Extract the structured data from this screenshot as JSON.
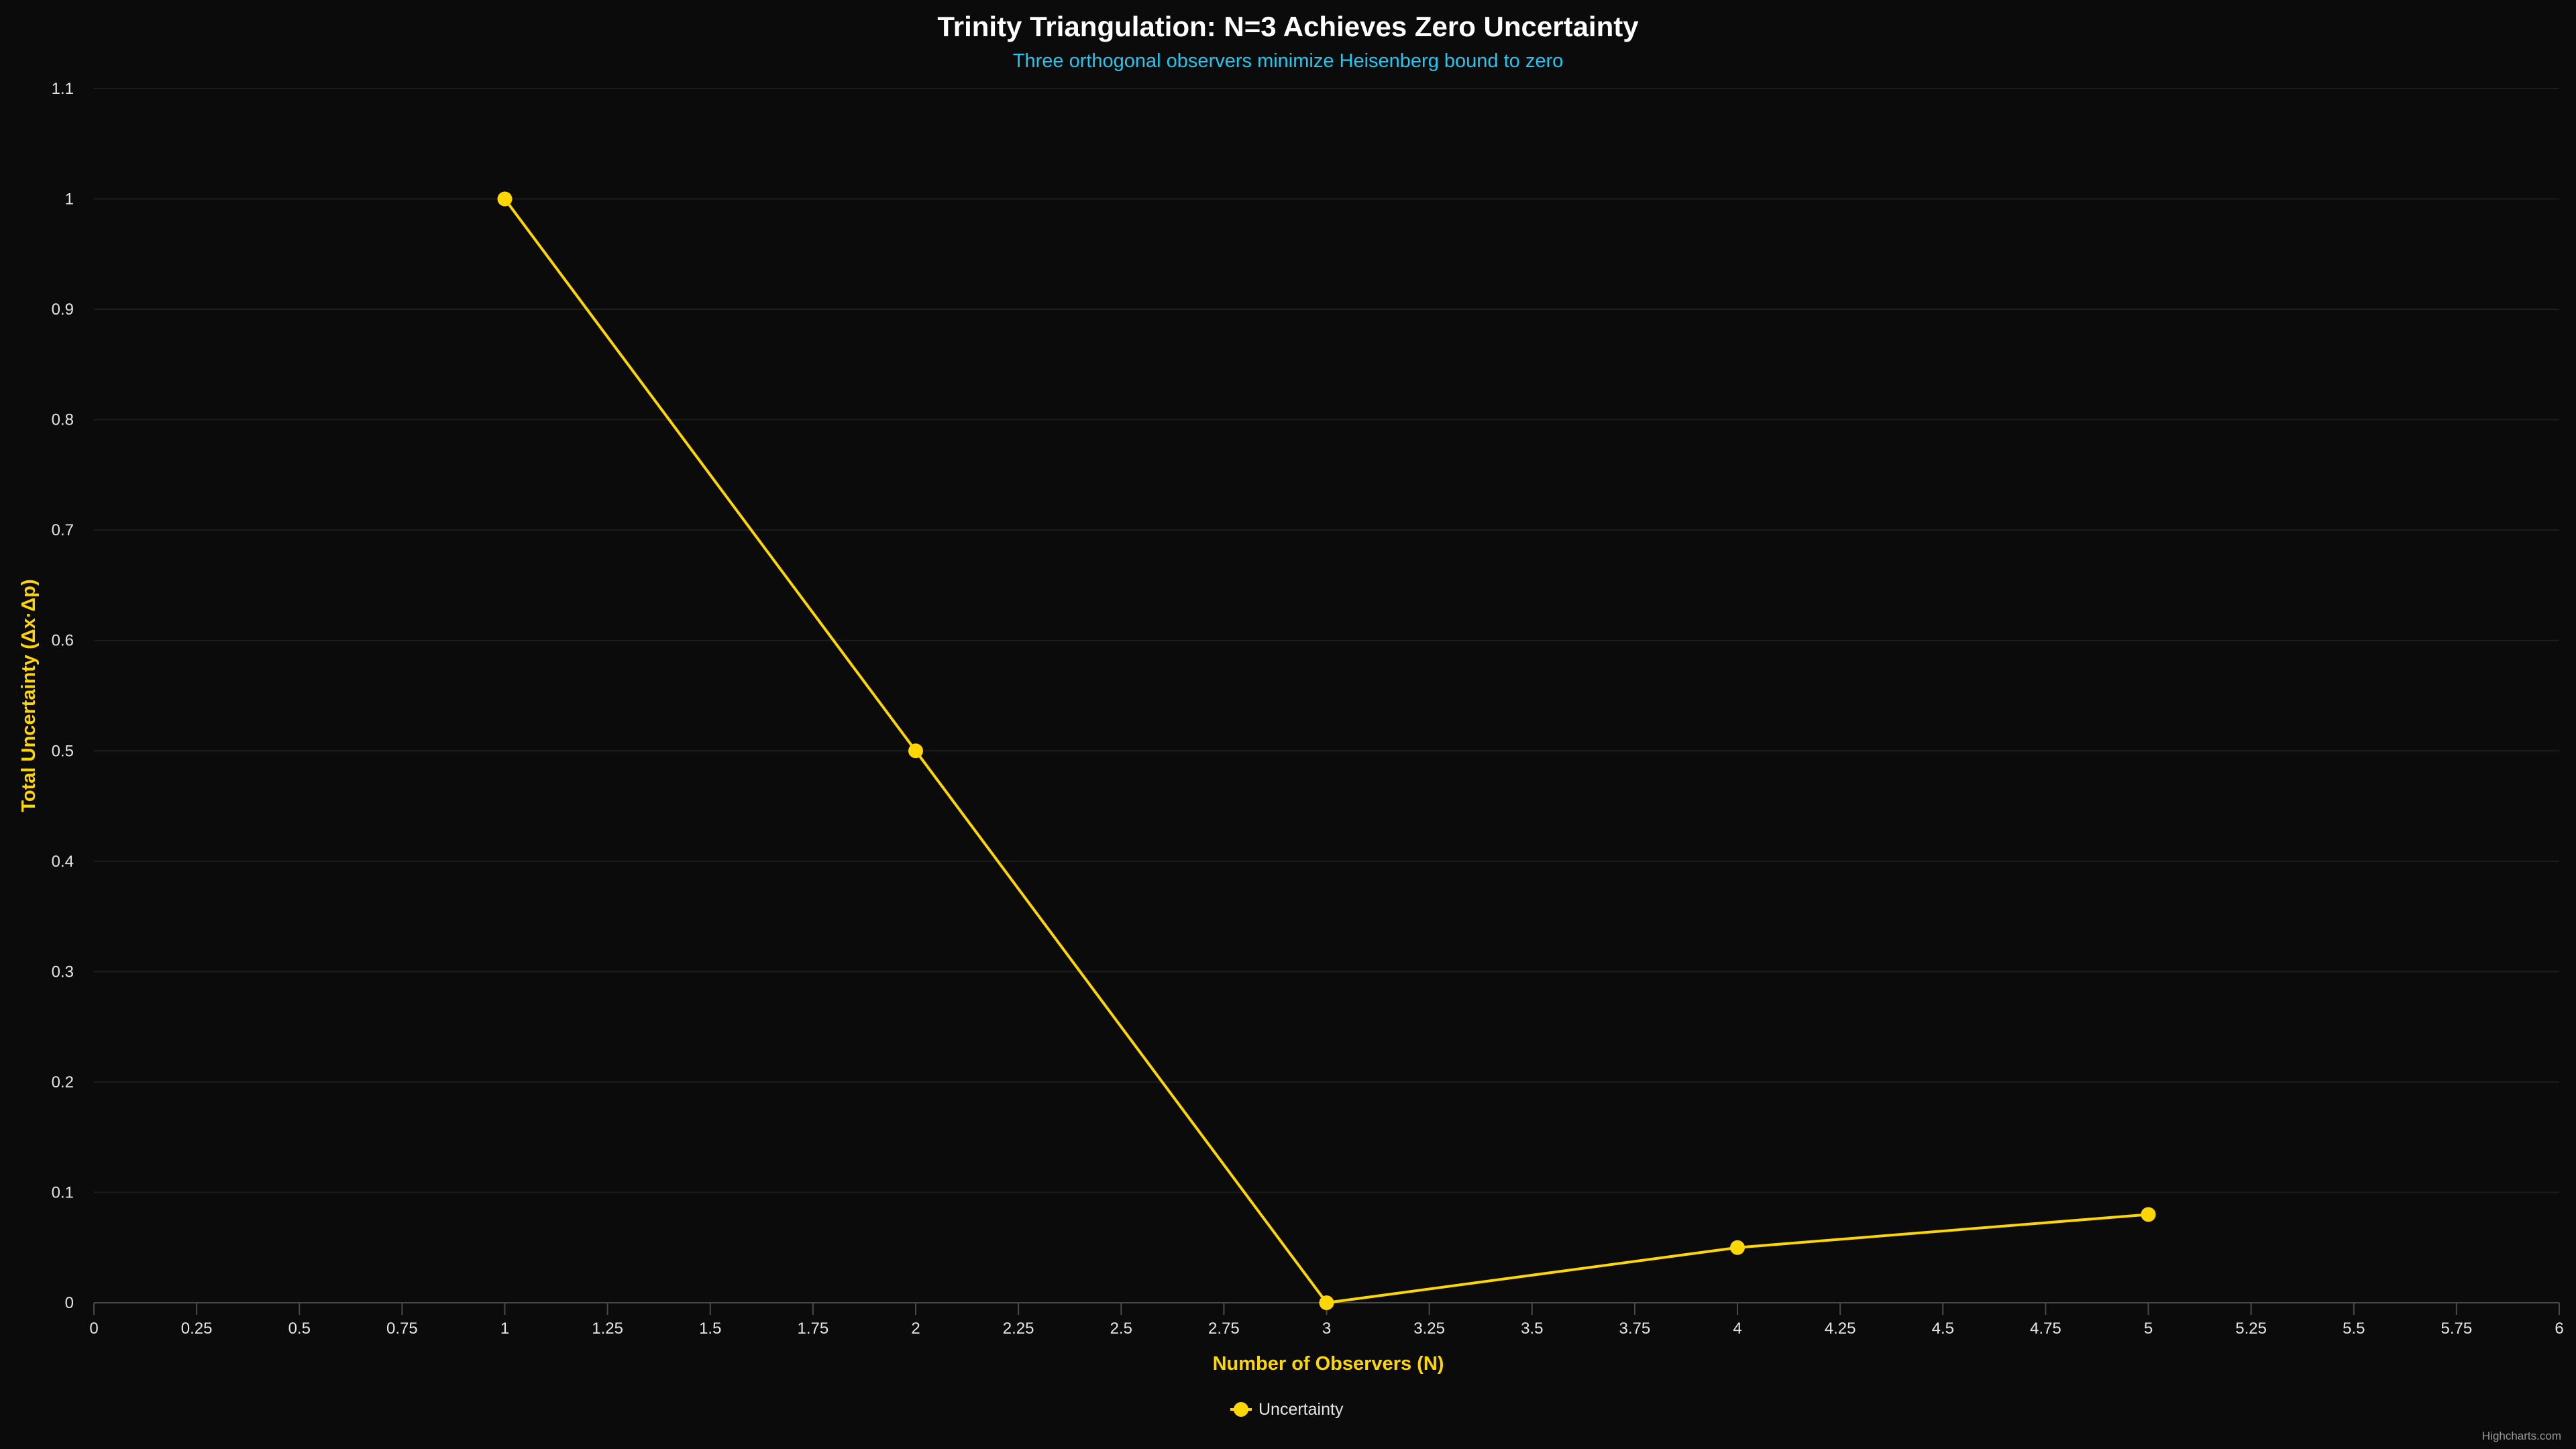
{
  "chart_data": {
    "type": "line",
    "title": "Trinity Triangulation: N=3 Achieves Zero Uncertainty",
    "subtitle": "Three orthogonal observers minimize Heisenberg bound to zero",
    "xlabel": "Number of Observers (N)",
    "ylabel": "Total Uncertainty (Δx·Δp)",
    "xlim": [
      0,
      6
    ],
    "ylim": [
      0,
      1.1
    ],
    "x_ticks": [
      "0",
      "0.25",
      "0.5",
      "0.75",
      "1",
      "1.25",
      "1.5",
      "1.75",
      "2",
      "2.25",
      "2.5",
      "2.75",
      "3",
      "3.25",
      "3.5",
      "3.75",
      "4",
      "4.25",
      "4.5",
      "4.75",
      "5",
      "5.25",
      "5.5",
      "5.75",
      "6"
    ],
    "y_ticks": [
      "0",
      "0.1",
      "0.2",
      "0.3",
      "0.4",
      "0.5",
      "0.6",
      "0.7",
      "0.8",
      "0.9",
      "1",
      "1.1"
    ],
    "grid": true,
    "legend_position": "bottom-center",
    "series": [
      {
        "name": "Uncertainty",
        "color": "#ffd700",
        "x": [
          1,
          2,
          3,
          4,
          5
        ],
        "y": [
          1.0,
          0.5,
          0.0,
          0.05,
          0.08
        ]
      }
    ],
    "colors": {
      "background": "#0b0b0b",
      "title": "#ffffff",
      "subtitle": "#1fc8f0",
      "axis_title": "#ffd700",
      "grid": "#1e1e1e",
      "axis_line": "#4a4a4a"
    }
  },
  "credits": "Highcharts.com"
}
